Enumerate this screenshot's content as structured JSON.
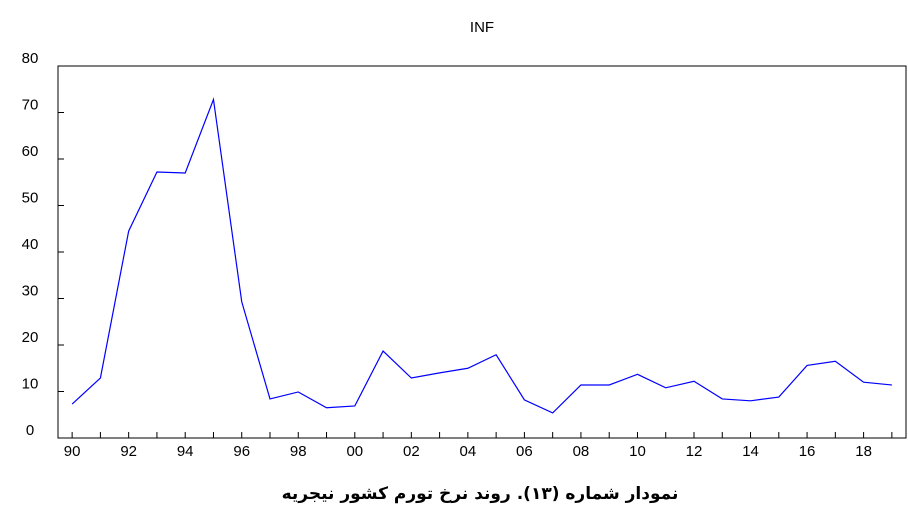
{
  "chart_data": {
    "type": "line",
    "title": "INF",
    "caption": "نمودار شماره (۱۳). روند نرخ تورم کشور نیجریه",
    "categories": [
      "90",
      null,
      "92",
      null,
      "94",
      null,
      "96",
      null,
      "98",
      null,
      "00",
      null,
      "02",
      null,
      "04",
      null,
      "06",
      null,
      "08",
      null,
      "10",
      null,
      "12",
      null,
      "14",
      null,
      "16",
      null,
      "18",
      null
    ],
    "series": [
      {
        "name": "INF",
        "color": "#0000ff",
        "values": [
          7.3,
          12.9,
          44.5,
          57.2,
          57.0,
          72.8,
          29.3,
          8.4,
          9.9,
          6.5,
          6.9,
          18.7,
          12.9,
          14.0,
          15.0,
          17.9,
          8.2,
          5.4,
          11.4,
          11.4,
          13.7,
          10.8,
          12.2,
          8.4,
          8.0,
          8.8,
          15.6,
          16.5,
          12.0,
          11.4
        ]
      }
    ],
    "ylim": [
      0,
      80
    ],
    "yticks": [
      0,
      10,
      20,
      30,
      40,
      50,
      60,
      70,
      80
    ],
    "grid": false
  }
}
